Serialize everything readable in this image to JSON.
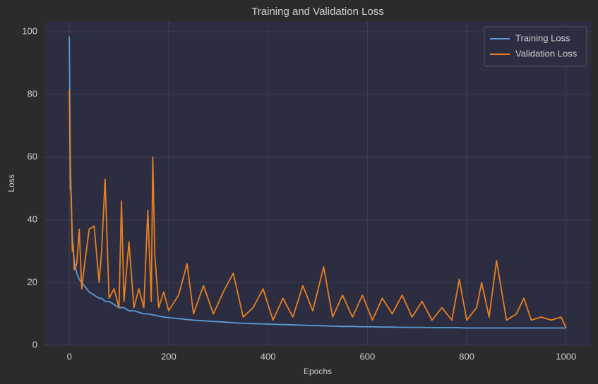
{
  "chart_data": {
    "type": "line",
    "title": "Training and Validation Loss",
    "x_label": "Epochs",
    "y_label": "Loss",
    "x": [
      0,
      2,
      4,
      6,
      8,
      10,
      15,
      20,
      25,
      30,
      40,
      50,
      60,
      65,
      72,
      80,
      90,
      100,
      105,
      110,
      120,
      130,
      140,
      150,
      158,
      165,
      168,
      172,
      180,
      190,
      200,
      220,
      237,
      250,
      270,
      290,
      310,
      330,
      350,
      370,
      390,
      410,
      430,
      450,
      470,
      490,
      512,
      530,
      550,
      570,
      590,
      610,
      630,
      650,
      670,
      690,
      710,
      730,
      750,
      770,
      785,
      800,
      820,
      830,
      845,
      860,
      880,
      900,
      915,
      930,
      950,
      970,
      990,
      1000
    ],
    "series": [
      {
        "name": "Training Loss",
        "color": "#5b9bd5",
        "values": [
          98.5,
          60,
          45,
          35,
          30,
          27,
          23,
          21,
          20,
          19,
          17,
          16,
          15,
          15,
          14,
          14,
          13,
          12,
          12,
          12,
          11,
          11,
          10.5,
          10,
          10,
          9.8,
          9.7,
          9.6,
          9.3,
          9,
          8.8,
          8.5,
          8.2,
          8,
          7.8,
          7.6,
          7.4,
          7.2,
          7,
          6.9,
          6.8,
          6.7,
          6.6,
          6.5,
          6.4,
          6.3,
          6.2,
          6.1,
          6,
          6,
          5.9,
          5.9,
          5.8,
          5.8,
          5.7,
          5.7,
          5.7,
          5.6,
          5.6,
          5.6,
          5.6,
          5.5,
          5.5,
          5.5,
          5.5,
          5.5,
          5.5,
          5.5,
          5.5,
          5.5,
          5.5,
          5.5,
          5.5,
          5.5
        ]
      },
      {
        "name": "Validation Loss",
        "color": "#e8801e",
        "values": [
          81.5,
          50,
          48,
          30,
          32,
          24,
          26,
          37,
          18,
          25,
          37,
          38,
          20,
          30,
          53,
          15,
          18,
          12,
          46,
          14,
          33,
          12,
          18,
          12,
          43,
          14,
          60,
          29,
          12,
          17,
          11,
          16,
          26,
          10,
          19,
          10,
          17,
          23,
          9,
          12,
          18,
          8,
          15,
          9,
          19,
          11,
          25,
          9,
          16,
          9,
          16,
          8,
          15,
          10,
          16,
          9,
          14,
          8,
          12,
          8,
          21,
          8,
          12,
          20,
          9,
          27,
          8,
          10,
          15,
          8,
          9,
          8,
          9,
          5.5
        ]
      }
    ],
    "xlim": [
      -50,
      1050
    ],
    "ylim": [
      0,
      103.4
    ],
    "xticks": [
      0,
      200,
      400,
      600,
      800,
      1000
    ],
    "yticks": [
      0,
      20,
      40,
      60,
      80,
      100
    ],
    "grid": true,
    "legend": "upper right"
  }
}
